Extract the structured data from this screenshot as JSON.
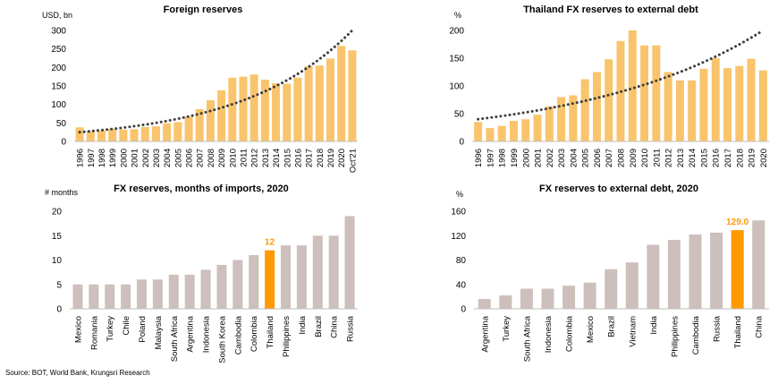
{
  "source": "Source: BOT, World Bank, Krungsri Research",
  "colors": {
    "gold": "#f9c46c",
    "grey": "#cdbfbb",
    "highlight": "#ff9900",
    "trend": "#3f3f3f",
    "axis": "#bfbfbf"
  },
  "chart_data": [
    {
      "type": "bar",
      "title": "Foreign reserves",
      "ylabel": "USD, bn",
      "ylim": [
        0,
        300
      ],
      "yticks": [
        0,
        50,
        100,
        150,
        200,
        250,
        300
      ],
      "categories": [
        "1996",
        "1997",
        "1998",
        "1999",
        "2000",
        "2001",
        "2002",
        "2003",
        "2004",
        "2005",
        "2006",
        "2007",
        "2008",
        "2009",
        "2010",
        "2011",
        "2012",
        "2013",
        "2014",
        "2015",
        "2016",
        "2017",
        "2018",
        "2019",
        "2020",
        "Oct'21"
      ],
      "values": [
        38,
        27,
        29,
        34,
        32,
        33,
        39,
        41,
        49,
        52,
        67,
        87,
        111,
        138,
        172,
        175,
        181,
        167,
        157,
        156,
        172,
        203,
        205,
        224,
        258,
        246
      ],
      "trend": {
        "style": "dotted",
        "start": 25,
        "end": 300
      }
    },
    {
      "type": "bar",
      "title": "Thailand FX reserves to external debt",
      "ylabel": "%",
      "ylim": [
        0,
        200
      ],
      "yticks": [
        0,
        50,
        100,
        150,
        200
      ],
      "categories": [
        "1996",
        "1997",
        "1998",
        "1999",
        "2000",
        "2001",
        "2002",
        "2003",
        "2004",
        "2005",
        "2006",
        "2007",
        "2008",
        "2009",
        "2010",
        "2011",
        "2012",
        "2013",
        "2014",
        "2015",
        "2016",
        "2017",
        "2018",
        "2019",
        "2020"
      ],
      "values": [
        35,
        24,
        28,
        37,
        40,
        48,
        63,
        80,
        83,
        112,
        125,
        148,
        181,
        200,
        173,
        173,
        125,
        110,
        110,
        131,
        150,
        132,
        136,
        149,
        128
      ],
      "trend": {
        "style": "dotted",
        "start": 40,
        "end": 200
      }
    },
    {
      "type": "bar",
      "title": "FX reserves, months of imports, 2020",
      "ylabel": "# months",
      "ylim": [
        0,
        20
      ],
      "yticks": [
        0,
        5,
        10,
        15,
        20
      ],
      "categories": [
        "Mexico",
        "Romania",
        "Turkey",
        "Chile",
        "Poland",
        "Malaysia",
        "South Africa",
        "Argentina",
        "Indonesia",
        "South Korea",
        "Cambodia",
        "Colombia",
        "Thailand",
        "Philippines",
        "India",
        "Brazil",
        "China",
        "Russia"
      ],
      "values": [
        5,
        5,
        5,
        5,
        6,
        6,
        7,
        7,
        8,
        9,
        10,
        11,
        12,
        13,
        13,
        15,
        15,
        19
      ],
      "highlight": "Thailand",
      "highlight_label": "12"
    },
    {
      "type": "bar",
      "title": "FX reserves to external debt, 2020",
      "ylabel": "%",
      "ylim": [
        0,
        160
      ],
      "yticks": [
        0,
        40,
        80,
        120,
        160
      ],
      "categories": [
        "Argentina",
        "Turkey",
        "South Africa",
        "Indonesia",
        "Colombia",
        "Mexico",
        "Brazil",
        "Vietnam",
        "India",
        "Philippines",
        "Cambodia",
        "Russia",
        "Thailand",
        "China"
      ],
      "values": [
        16,
        22,
        33,
        33,
        38,
        43,
        65,
        76,
        105,
        113,
        122,
        125,
        129,
        145
      ],
      "highlight": "Thailand",
      "highlight_label": "129.0"
    }
  ]
}
